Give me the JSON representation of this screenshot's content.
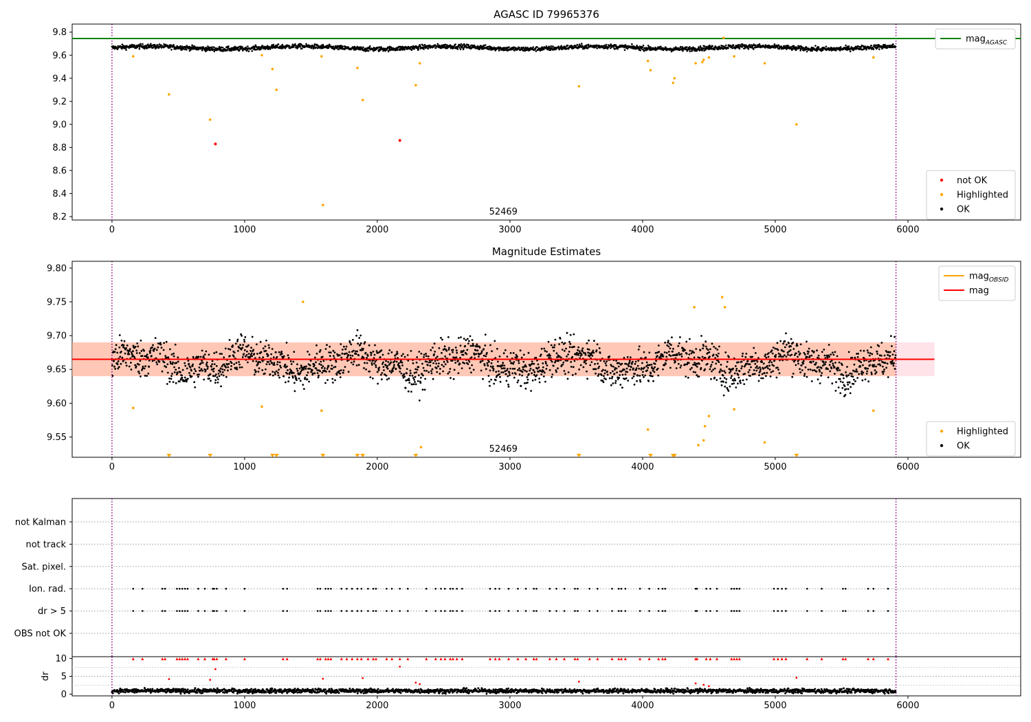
{
  "chart_data": [
    {
      "type": "scatter",
      "title": "AGASC ID 79965376",
      "xlim": [
        -300,
        6850
      ],
      "ylim": [
        8.17,
        9.87
      ],
      "xticks": [
        0,
        1000,
        2000,
        3000,
        4000,
        5000,
        6000
      ],
      "yticks": [
        8.2,
        8.4,
        8.6,
        8.8,
        9.0,
        9.2,
        9.4,
        9.6,
        9.8
      ],
      "grid": false,
      "obsid_annotation": {
        "text": "52469",
        "x": 2950
      },
      "vlines": {
        "x": [
          0,
          5910
        ],
        "color": "#800080",
        "style": "dotted"
      },
      "mag_agasc": {
        "value": 9.745,
        "color": "#008000",
        "x_range": [
          -300,
          6850
        ]
      },
      "legends": [
        {
          "placement": "top-right",
          "entries": [
            {
              "label": "mag",
              "sub": "AGASC",
              "color": "#008000",
              "marker": "line"
            }
          ]
        },
        {
          "placement": "bottom-right",
          "entries": [
            {
              "label": "not OK",
              "color": "#ff0000",
              "marker": "dot"
            },
            {
              "label": "Highlighted",
              "color": "#ffa500",
              "marker": "dot"
            },
            {
              "label": "OK",
              "color": "#000000",
              "marker": "dot"
            }
          ]
        }
      ],
      "series": [
        {
          "name": "not OK",
          "color": "#ff0000",
          "x": [
            780,
            2170
          ],
          "y": [
            8.83,
            8.86
          ]
        },
        {
          "name": "Highlighted",
          "color": "#ffa500",
          "x": [
            160,
            430,
            740,
            1130,
            1210,
            1240,
            1580,
            1590,
            1850,
            1890,
            2290,
            2320,
            3520,
            4040,
            4060,
            4230,
            4240,
            4400,
            4450,
            4460,
            4500,
            4610,
            4690,
            4920,
            5160,
            5740
          ],
          "y": [
            9.59,
            9.26,
            9.04,
            9.6,
            9.48,
            9.3,
            9.59,
            8.3,
            9.49,
            9.21,
            9.34,
            9.53,
            9.33,
            9.55,
            9.47,
            9.36,
            9.4,
            9.53,
            9.54,
            9.56,
            9.58,
            9.75,
            9.59,
            9.53,
            9.0,
            9.58
          ]
        },
        {
          "name": "OK",
          "color": "#000000",
          "x_range": [
            0,
            5910
          ],
          "center": 9.665,
          "spread": 0.028,
          "count": 2200
        }
      ]
    },
    {
      "type": "scatter",
      "title": "Magnitude Estimates",
      "xlim": [
        -300,
        6850
      ],
      "ylim": [
        9.52,
        9.81
      ],
      "xticks": [
        0,
        1000,
        2000,
        3000,
        4000,
        5000,
        6000
      ],
      "yticks": [
        9.55,
        9.6,
        9.65,
        9.7,
        9.75,
        9.8
      ],
      "grid": false,
      "obsid_annotation": {
        "text": "52469",
        "x": 2950
      },
      "vlines": {
        "x": [
          0,
          5910
        ],
        "color": "#800080",
        "style": "dotted"
      },
      "mag": {
        "value": 9.665,
        "color": "#ff0000",
        "band": [
          9.64,
          9.69
        ],
        "band_color": "#ffc0cb",
        "x_range": [
          -300,
          6200
        ]
      },
      "mag_obsid": {
        "value": 9.665,
        "color": "#ffa500",
        "band": [
          9.64,
          9.69
        ],
        "band_color": "#ffa77a",
        "x_range": [
          -300,
          5910
        ]
      },
      "legends": [
        {
          "placement": "top-right",
          "entries": [
            {
              "label": "mag",
              "sub": "OBSID",
              "color": "#ffa500",
              "marker": "line"
            },
            {
              "label": "mag",
              "sub": "",
              "color": "#ff0000",
              "marker": "line"
            }
          ]
        },
        {
          "placement": "bottom-right",
          "entries": [
            {
              "label": "Highlighted",
              "color": "#ffa500",
              "marker": "dot"
            },
            {
              "label": "OK",
              "color": "#000000",
              "marker": "dot"
            }
          ]
        }
      ],
      "series": [
        {
          "name": "Highlighted",
          "color": "#ffa500",
          "x": [
            160,
            1130,
            1440,
            1580,
            2330,
            4040,
            4390,
            4420,
            4460,
            4470,
            4500,
            4600,
            4620,
            4690,
            4920,
            5740
          ],
          "y": [
            9.593,
            9.595,
            9.75,
            9.589,
            9.535,
            9.561,
            9.742,
            9.538,
            9.545,
            9.566,
            9.581,
            9.757,
            9.742,
            9.591,
            9.542,
            9.589
          ]
        },
        {
          "name": "Highlighted below axis",
          "color": "#ffa500",
          "marker": "triangle-down",
          "x": [
            430,
            740,
            1210,
            1240,
            1590,
            1850,
            1890,
            2290,
            3520,
            4060,
            4230,
            4240,
            5160
          ],
          "y": 9.52
        },
        {
          "name": "OK",
          "color": "#000000",
          "x_range": [
            0,
            5910
          ],
          "center": 9.66,
          "spread": 0.03,
          "count": 2200
        }
      ]
    },
    {
      "type": "scatter",
      "title": "",
      "xlim": [
        -300,
        6850
      ],
      "categories": [
        "not Kalman",
        "not track",
        "Sat. pixel.",
        "Ion. rad.",
        "dr > 5",
        "OBS not OK"
      ],
      "flag_x": [
        160,
        230,
        380,
        400,
        490,
        510,
        530,
        550,
        570,
        650,
        700,
        760,
        770,
        790,
        860,
        1000,
        1290,
        1320,
        1550,
        1570,
        1610,
        1630,
        1650,
        1730,
        1770,
        1810,
        1850,
        1880,
        1930,
        1970,
        1990,
        2070,
        2110,
        2170,
        2230,
        2370,
        2440,
        2480,
        2510,
        2550,
        2570,
        2600,
        2640,
        2850,
        2890,
        2920,
        2990,
        3060,
        3120,
        3180,
        3200,
        3300,
        3350,
        3410,
        3490,
        3510,
        3600,
        3660,
        3770,
        3820,
        3840,
        3870,
        3980,
        4050,
        4120,
        4150,
        4170,
        4400,
        4410,
        4480,
        4510,
        4560,
        4670,
        4690,
        4710,
        4730,
        4990,
        5020,
        5050,
        5080,
        5240,
        5350,
        5510,
        5530,
        5700,
        5740,
        5850
      ],
      "flag_rows": [
        "Ion. rad.",
        "dr > 5"
      ],
      "vlines": {
        "x": [
          0,
          5910
        ],
        "color": "#800080",
        "style": "dotted"
      }
    },
    {
      "type": "scatter",
      "title": "",
      "ylabel": "dr",
      "xlim": [
        -300,
        6850
      ],
      "ylim": [
        -0.5,
        10.5
      ],
      "xticks": [
        0,
        1000,
        2000,
        3000,
        4000,
        5000,
        6000
      ],
      "yticks": [
        0,
        5,
        10
      ],
      "threshold_line": 5,
      "vlines": {
        "x": [
          0,
          5910
        ],
        "color": "#800080",
        "style": "dotted"
      },
      "series": [
        {
          "name": "dr clipped",
          "color": "#ff0000",
          "marker": "triangle-up",
          "y": 9.9,
          "x_from_flags": true
        },
        {
          "name": "dr outliers",
          "color": "#ff0000",
          "x": [
            430,
            740,
            780,
            1590,
            1890,
            2170,
            2290,
            2320,
            3520,
            4400,
            4460,
            4500,
            5160
          ],
          "y": [
            4.2,
            4.0,
            7.0,
            4.3,
            4.5,
            7.7,
            3.2,
            2.8,
            3.5,
            3.0,
            2.6,
            2.2,
            4.6
          ]
        },
        {
          "name": "OK",
          "color": "#000000",
          "x_range": [
            0,
            5910
          ],
          "center": 0.9,
          "spread": 0.5,
          "count": 1800
        }
      ]
    }
  ]
}
